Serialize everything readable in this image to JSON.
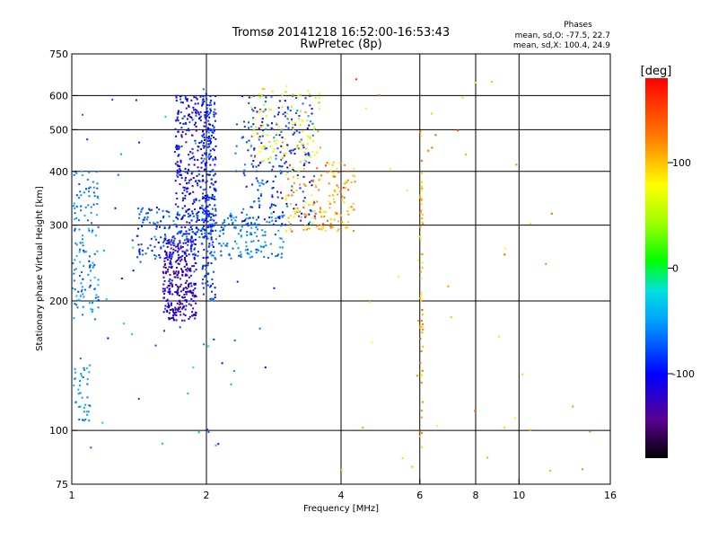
{
  "chart_data": {
    "type": "scatter",
    "title": "Tromsø 20141218 16:52:00-16:53:43",
    "subtitle": "RwPretec (8p)",
    "xlabel": "Frequency [MHz]",
    "ylabel": "Stationary phase Virtual Height [km]",
    "xscale": "log",
    "yscale": "log",
    "xlim": [
      1,
      16
    ],
    "ylim": [
      75,
      750
    ],
    "xticks": [
      1,
      2,
      4,
      6,
      8,
      10,
      16
    ],
    "yticks": [
      75,
      100,
      200,
      300,
      400,
      500,
      600,
      750
    ],
    "x_gridlines": [
      2,
      4,
      6,
      8,
      10
    ],
    "y_gridlines": [
      100,
      200,
      300,
      400,
      500,
      600
    ],
    "annotation": {
      "title": "Phases",
      "line1": "mean, sd,O: -77.5, 22.7",
      "line2": "mean, sd,X: 100.4, 24.9"
    },
    "colorbar": {
      "label": "[deg]",
      "range": [
        -180,
        180
      ],
      "ticks": [
        -100,
        0,
        100
      ]
    },
    "series": [
      {
        "name": "O",
        "clusters": [
          {
            "x": [
              1.0,
              1.15
            ],
            "y": [
              180,
              400
            ],
            "phase_mean": -60,
            "phase_sd": 20,
            "n": 140
          },
          {
            "x": [
              1.0,
              1.1
            ],
            "y": [
              105,
              150
            ],
            "phase_mean": -55,
            "phase_sd": 15,
            "n": 40
          },
          {
            "x": [
              1.6,
              1.9
            ],
            "y": [
              180,
              280
            ],
            "phase_mean": -120,
            "phase_sd": 25,
            "n": 320
          },
          {
            "x": [
              1.7,
              2.1
            ],
            "y": [
              280,
              600
            ],
            "phase_mean": -100,
            "phase_sd": 20,
            "n": 360
          },
          {
            "x": [
              1.4,
              2.0
            ],
            "y": [
              250,
              330
            ],
            "phase_mean": -80,
            "phase_sd": 20,
            "n": 160
          },
          {
            "x": [
              1.95,
              2.1
            ],
            "y": [
              200,
              640
            ],
            "phase_mean": -85,
            "phase_sd": 20,
            "n": 150
          },
          {
            "x": [
              2.0,
              3.0
            ],
            "y": [
              250,
              320
            ],
            "phase_mean": -60,
            "phase_sd": 15,
            "n": 150
          },
          {
            "x": [
              2.4,
              3.5
            ],
            "y": [
              300,
              600
            ],
            "phase_mean": -85,
            "phase_sd": 25,
            "n": 240
          },
          {
            "x": [
              1.0,
              3.0
            ],
            "y": [
              90,
              700
            ],
            "phase_mean": -70,
            "phase_sd": 40,
            "n": 70
          }
        ]
      },
      {
        "name": "X",
        "clusters": [
          {
            "x": [
              2.5,
              3.6
            ],
            "y": [
              420,
              640
            ],
            "phase_mean": 80,
            "phase_sd": 25,
            "n": 110
          },
          {
            "x": [
              3.0,
              4.3
            ],
            "y": [
              290,
              420
            ],
            "phase_mean": 110,
            "phase_sd": 30,
            "n": 160
          },
          {
            "x": [
              6.0,
              6.1
            ],
            "y": [
              90,
              500
            ],
            "phase_mean": 100,
            "phase_sd": 30,
            "n": 60
          },
          {
            "x": [
              4.0,
              15.0
            ],
            "y": [
              75,
              700
            ],
            "phase_mean": 100,
            "phase_sd": 40,
            "n": 45
          }
        ]
      }
    ]
  }
}
